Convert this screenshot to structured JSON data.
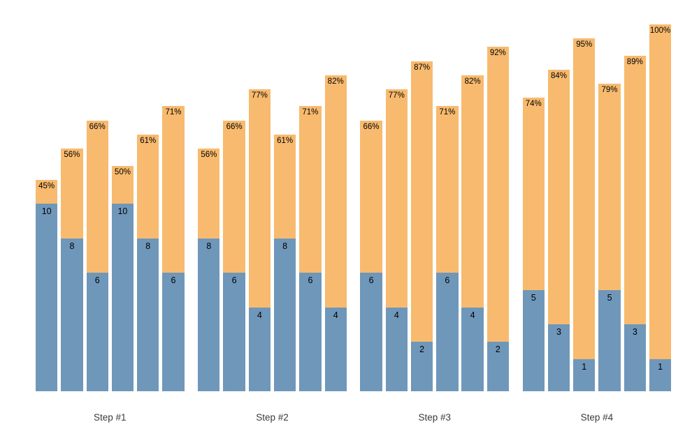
{
  "chart_data": {
    "type": "bar",
    "subtype": "stacked-vertical",
    "title": "",
    "axes_visible": false,
    "grid": false,
    "legend_position": "none",
    "background_color": "#FFFFFF",
    "series": [
      {
        "name": "base-count",
        "color": "#6F97BA",
        "label_format": "integer",
        "label_color": "#000000"
      },
      {
        "name": "completion-rate",
        "color": "#F8BA6E",
        "label_format": "percent",
        "label_color": "#000000"
      }
    ],
    "group_label_color": "#3A3A3A",
    "categories": [
      "Step #1",
      "Step #2",
      "Step #3",
      "Step #4"
    ],
    "groups": [
      {
        "label": "Step #1",
        "bars": [
          {
            "value": 10,
            "percent": 45,
            "percent_label": "45%"
          },
          {
            "value": 8,
            "percent": 56,
            "percent_label": "56%"
          },
          {
            "value": 6,
            "percent": 66,
            "percent_label": "66%"
          },
          {
            "value": 10,
            "percent": 50,
            "percent_label": "50%"
          },
          {
            "value": 8,
            "percent": 61,
            "percent_label": "61%"
          },
          {
            "value": 6,
            "percent": 71,
            "percent_label": "71%"
          }
        ]
      },
      {
        "label": "Step #2",
        "bars": [
          {
            "value": 8,
            "percent": 56,
            "percent_label": "56%"
          },
          {
            "value": 6,
            "percent": 66,
            "percent_label": "66%"
          },
          {
            "value": 4,
            "percent": 77,
            "percent_label": "77%"
          },
          {
            "value": 8,
            "percent": 61,
            "percent_label": "61%"
          },
          {
            "value": 6,
            "percent": 71,
            "percent_label": "71%"
          },
          {
            "value": 4,
            "percent": 82,
            "percent_label": "82%"
          }
        ]
      },
      {
        "label": "Step #3",
        "bars": [
          {
            "value": 6,
            "percent": 66,
            "percent_label": "66%"
          },
          {
            "value": 4,
            "percent": 77,
            "percent_label": "77%"
          },
          {
            "value": 2,
            "percent": 87,
            "percent_label": "87%"
          },
          {
            "value": 6,
            "percent": 71,
            "percent_label": "71%"
          },
          {
            "value": 4,
            "percent": 82,
            "percent_label": "82%"
          },
          {
            "value": 2,
            "percent": 92,
            "percent_label": "92%"
          }
        ]
      },
      {
        "label": "Step #4",
        "bars": [
          {
            "value": 5,
            "percent": 74,
            "percent_label": "74%"
          },
          {
            "value": 3,
            "percent": 84,
            "percent_label": "84%"
          },
          {
            "value": 1,
            "percent": 95,
            "percent_label": "95%"
          },
          {
            "value": 5,
            "percent": 79,
            "percent_label": "79%"
          },
          {
            "value": 3,
            "percent": 89,
            "percent_label": "89%"
          },
          {
            "value": 1,
            "percent": 100,
            "percent_label": "100%"
          }
        ]
      }
    ]
  }
}
